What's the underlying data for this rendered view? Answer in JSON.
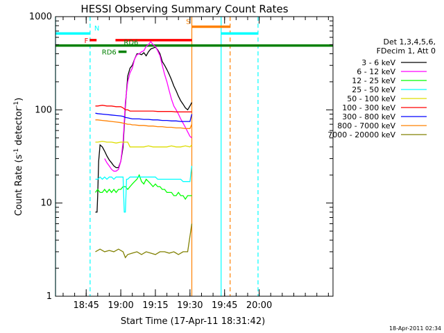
{
  "chart_data": {
    "type": "line",
    "title": "HESSI Observing Summary Count Rates",
    "xlabel": "Start Time (17-Apr-11 18:31:42)",
    "ylabel_prefix": "Count Rate (s",
    "ylabel_sup1": "-1",
    "ylabel_mid": " detector",
    "ylabel_sup2": "-1",
    "ylabel_suffix": ")",
    "y_scale": "log",
    "ylim": [
      1,
      1000
    ],
    "xlim_min": [
      1111.7,
      1232
    ],
    "x_ticks": [
      {
        "v": 1125,
        "label": "18:45"
      },
      {
        "v": 1140,
        "label": "19:00"
      },
      {
        "v": 1155,
        "label": "19:15"
      },
      {
        "v": 1170,
        "label": "19:30"
      },
      {
        "v": 1185,
        "label": "19:45"
      },
      {
        "v": 1200,
        "label": "20:00"
      }
    ],
    "y_ticks": [
      {
        "v": 1,
        "label": "1"
      },
      {
        "v": 10,
        "label": "10"
      },
      {
        "v": 100,
        "label": "100"
      },
      {
        "v": 1000,
        "label": "1000"
      }
    ],
    "legend_title": [
      "Det 1,3,4,5,6,",
      "FDecim 1, Att 0"
    ],
    "series": [
      {
        "name": "3 - 6 keV",
        "color": "#000000",
        "x": [
          1129,
          1129.7,
          1130,
          1130.4,
          1131,
          1132,
          1133,
          1134,
          1135,
          1136,
          1137,
          1138,
          1139,
          1140,
          1141,
          1142,
          1143,
          1144,
          1145,
          1146,
          1147,
          1148,
          1149,
          1150,
          1151,
          1152,
          1153,
          1154,
          1155,
          1156,
          1157,
          1158,
          1159,
          1160,
          1161,
          1162,
          1163,
          1164,
          1165,
          1166,
          1167,
          1168,
          1169,
          1170,
          1170.8
        ],
        "y": [
          8,
          8,
          12,
          28,
          42,
          40,
          36,
          32,
          29,
          27,
          25,
          24,
          24,
          28,
          40,
          110,
          230,
          280,
          300,
          350,
          400,
          400,
          390,
          410,
          380,
          420,
          450,
          460,
          470,
          440,
          400,
          330,
          300,
          270,
          240,
          210,
          180,
          160,
          140,
          125,
          115,
          105,
          100,
          110,
          120
        ]
      },
      {
        "name": "6 - 12 keV",
        "color": "#ff00ff",
        "x": [
          1133,
          1134,
          1135,
          1136,
          1137,
          1138,
          1139,
          1140,
          1141,
          1142,
          1143,
          1144,
          1145,
          1146,
          1147,
          1148,
          1149,
          1150,
          1151,
          1152,
          1153,
          1154,
          1155,
          1156,
          1157,
          1158,
          1159,
          1160,
          1161,
          1162,
          1163,
          1164,
          1165,
          1166,
          1167,
          1168,
          1169,
          1170,
          1170.8
        ],
        "y": [
          30,
          27,
          25,
          23,
          22,
          22,
          23,
          28,
          45,
          120,
          200,
          250,
          280,
          350,
          390,
          400,
          420,
          430,
          480,
          500,
          540,
          500,
          480,
          430,
          380,
          300,
          240,
          200,
          160,
          130,
          110,
          100,
          90,
          80,
          72,
          65,
          58,
          52,
          50
        ]
      },
      {
        "name": "12 - 25 keV",
        "color": "#00ff00",
        "x": [
          1129,
          1130,
          1131,
          1132,
          1133,
          1134,
          1135,
          1136,
          1137,
          1138,
          1139,
          1140,
          1141,
          1142,
          1143,
          1144,
          1145,
          1146,
          1147,
          1148,
          1149,
          1150,
          1151,
          1152,
          1153,
          1154,
          1155,
          1156,
          1157,
          1158,
          1159,
          1160,
          1161,
          1162,
          1163,
          1164,
          1165,
          1166,
          1167,
          1168,
          1169,
          1170,
          1170.8
        ],
        "y": [
          13,
          14,
          13,
          13,
          14,
          13,
          14,
          13,
          14,
          13,
          14,
          14,
          15,
          15,
          14,
          15,
          16,
          17,
          18,
          20,
          17,
          16,
          18,
          17,
          16,
          15,
          16,
          15,
          15,
          14,
          14,
          13,
          13,
          13,
          12,
          12,
          13,
          12,
          12,
          11,
          12,
          12,
          12
        ]
      },
      {
        "name": "25 - 50 keV",
        "color": "#00ffff",
        "x": [
          1129,
          1130,
          1131,
          1132,
          1133,
          1134,
          1135,
          1136,
          1137,
          1138,
          1139,
          1140,
          1141,
          1141.5,
          1142,
          1142.5,
          1143,
          1144,
          1145,
          1146,
          1147,
          1148,
          1149,
          1150,
          1151,
          1152,
          1153,
          1154,
          1155,
          1156,
          1157,
          1158,
          1159,
          1160,
          1161,
          1162,
          1163,
          1164,
          1165,
          1166,
          1167,
          1168,
          1169,
          1170,
          1170.8
        ],
        "y": [
          18,
          18,
          19,
          18,
          19,
          18,
          19,
          19,
          18,
          19,
          19,
          19,
          19,
          8,
          8,
          18,
          18,
          19,
          19,
          19,
          19,
          19,
          19,
          19,
          19,
          19,
          19,
          19,
          19,
          18,
          18,
          18,
          18,
          18,
          18,
          18,
          18,
          18,
          18,
          18,
          17,
          17,
          17,
          17,
          25
        ]
      },
      {
        "name": "50 - 100 keV",
        "color": "#dddd00",
        "x": [
          1129,
          1130,
          1132,
          1134,
          1136,
          1138,
          1140,
          1141,
          1142,
          1143,
          1144,
          1145,
          1146,
          1148,
          1150,
          1152,
          1154,
          1156,
          1158,
          1160,
          1162,
          1164,
          1166,
          1168,
          1170,
          1170.8
        ],
        "y": [
          45,
          45,
          46,
          45,
          45,
          44,
          45,
          45,
          45,
          45,
          40,
          40,
          40,
          40,
          40,
          41,
          40,
          40,
          40,
          40,
          41,
          40,
          40,
          41,
          40,
          42
        ]
      },
      {
        "name": "100 - 300 keV",
        "color": "#ff0000",
        "x": [
          1129,
          1130,
          1132,
          1134,
          1136,
          1138,
          1140,
          1141,
          1142,
          1143,
          1144,
          1145,
          1146,
          1148,
          1150,
          1152,
          1154,
          1156,
          1158,
          1160,
          1162,
          1164,
          1166,
          1168,
          1170,
          1170.8
        ],
        "y": [
          110,
          110,
          112,
          110,
          110,
          108,
          108,
          105,
          100,
          100,
          97,
          97,
          97,
          97,
          97,
          97,
          97,
          96,
          96,
          96,
          96,
          95,
          95,
          95,
          95,
          95
        ]
      },
      {
        "name": "300 - 800 keV",
        "color": "#0000ff",
        "x": [
          1129,
          1130,
          1132,
          1134,
          1136,
          1138,
          1140,
          1141,
          1142,
          1143,
          1144,
          1145,
          1146,
          1148,
          1150,
          1152,
          1154,
          1156,
          1158,
          1160,
          1162,
          1164,
          1166,
          1168,
          1170,
          1170.8
        ],
        "y": [
          92,
          91,
          90,
          89,
          88,
          87,
          86,
          85,
          83,
          82,
          81,
          80,
          80,
          80,
          79,
          79,
          78,
          78,
          77,
          77,
          76,
          76,
          75,
          75,
          75,
          90
        ]
      },
      {
        "name": "800 - 7000 keV",
        "color": "#ff8000",
        "x": [
          1129,
          1130,
          1132,
          1134,
          1136,
          1138,
          1140,
          1141,
          1142,
          1143,
          1144,
          1145,
          1146,
          1148,
          1150,
          1152,
          1154,
          1156,
          1158,
          1160,
          1162,
          1164,
          1166,
          1168,
          1170,
          1170.8
        ],
        "y": [
          78,
          78,
          77,
          76,
          75,
          74,
          73,
          72,
          71,
          70,
          70,
          69,
          69,
          68,
          68,
          67,
          67,
          66,
          66,
          65,
          65,
          64,
          64,
          63,
          63,
          70
        ]
      },
      {
        "name": "7000 - 20000 keV",
        "color": "#808000",
        "x": [
          1129,
          1131,
          1133,
          1135,
          1137,
          1139,
          1141,
          1142,
          1143,
          1145,
          1147,
          1149,
          1151,
          1153,
          1155,
          1157,
          1159,
          1161,
          1163,
          1165,
          1167,
          1169,
          1170.8
        ],
        "y": [
          3,
          3.2,
          3,
          3.1,
          3,
          3.2,
          3,
          2.6,
          2.8,
          2.9,
          3,
          2.8,
          3,
          2.9,
          2.8,
          3,
          3,
          2.9,
          3,
          2.8,
          3,
          3,
          6
        ]
      }
    ],
    "vertical_lines": [
      {
        "x": 1111.7,
        "color": "#00ffff",
        "style": "solid"
      },
      {
        "x": 1126.7,
        "color": "#00ffff",
        "style": "dashed"
      },
      {
        "x": 1170.8,
        "color": "#ff8000",
        "style": "solid"
      },
      {
        "x": 1183.5,
        "color": "#00ffff",
        "style": "solid"
      },
      {
        "x": 1187.4,
        "color": "#ff8000",
        "style": "dashed"
      },
      {
        "x": 1199.5,
        "color": "#00ffff",
        "style": "dashed"
      }
    ],
    "flag_bars": [
      {
        "label": "",
        "color": "#00ffff",
        "x0": 1111.7,
        "x1": 1126.7,
        "y": 660
      },
      {
        "label": "N",
        "color": "#00ffff",
        "x0": 1126.7,
        "x1": 1126.7,
        "y": 660
      },
      {
        "label": "",
        "color": "#00ffff",
        "x0": 1183.5,
        "x1": 1199.5,
        "y": 660
      },
      {
        "label": "S",
        "color": "#ff8000",
        "x0": 1170.8,
        "x1": 1187.4,
        "y": 780
      },
      {
        "label": "F",
        "color": "#ff0000",
        "x0": 1126.5,
        "x1": 1129.5,
        "y": 560
      },
      {
        "label": "",
        "color": "#ff0000",
        "x0": 1137.7,
        "x1": 1170.8,
        "y": 560
      },
      {
        "label": "RD6",
        "color": "#008000",
        "x0": 1139,
        "x1": 1142.5,
        "y": 420
      },
      {
        "label": "RD6",
        "color": "#008000",
        "x0": 1111.7,
        "x1": 1232,
        "y": 490
      }
    ],
    "footer_timestamp": "18-Apr-2011 02:34"
  }
}
